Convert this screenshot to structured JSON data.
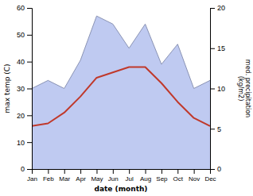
{
  "chart_data": {
    "type": "line",
    "xlabel": "date (month)",
    "ylabel": "max temp (C)",
    "y2label": "med. precipitation\n(kg/m2)",
    "categories": [
      "Jan",
      "Feb",
      "Mar",
      "Apr",
      "May",
      "Jun",
      "Jul",
      "Aug",
      "Sep",
      "Oct",
      "Nov",
      "Dec"
    ],
    "series": [
      {
        "type": "area",
        "axis": "y2",
        "color": "#b8c4f0",
        "values": [
          10,
          11,
          10,
          13.5,
          19,
          18,
          15,
          18,
          13,
          15.5,
          10,
          11
        ]
      },
      {
        "type": "line",
        "color": "#c0392b",
        "values": [
          16,
          17,
          21,
          27,
          34,
          36,
          38,
          38,
          32,
          25,
          19,
          16
        ]
      }
    ],
    "ylim": [
      0,
      60
    ],
    "yticks": [
      0,
      10,
      20,
      30,
      40,
      50,
      60
    ],
    "y2lim": [
      0,
      20
    ],
    "y2ticks": [
      0,
      5,
      10,
      15,
      20
    ]
  }
}
